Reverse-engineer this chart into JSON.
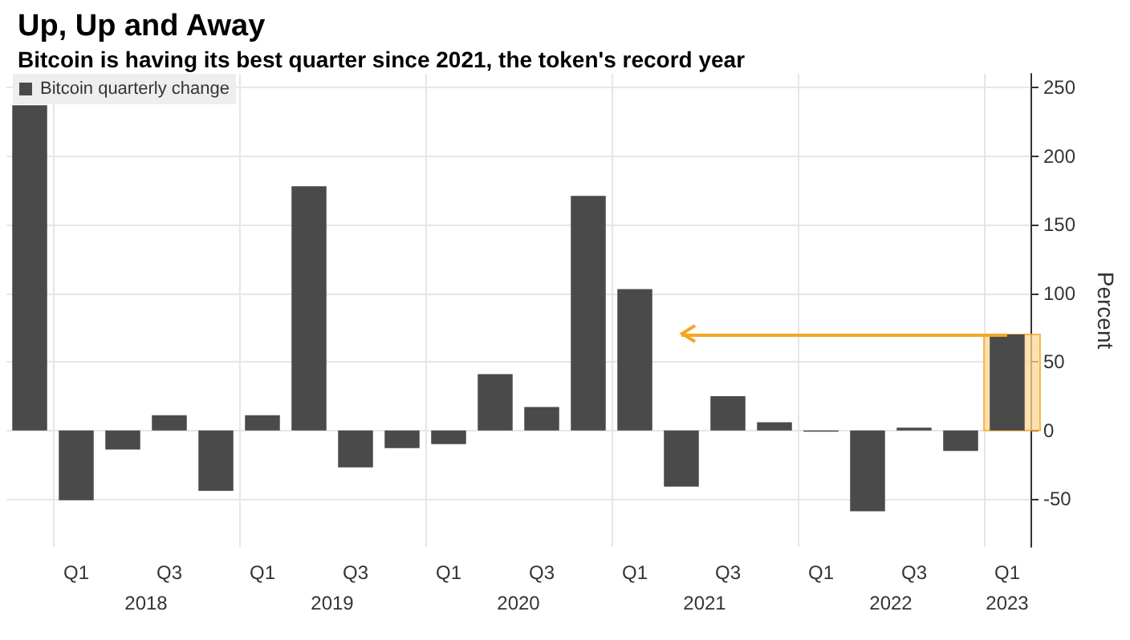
{
  "chart_data": {
    "type": "bar",
    "title": "Up, Up and Away",
    "subtitle": "Bitcoin is having its best quarter since 2021, the token's record year",
    "categories": [
      null,
      "Q1",
      null,
      "Q3",
      null,
      "Q1",
      null,
      "Q3",
      null,
      "Q1",
      null,
      "Q3",
      null,
      "Q1",
      null,
      "Q3",
      null,
      "Q1",
      null,
      "Q3",
      null,
      "Q1"
    ],
    "series": [
      {
        "name": "Bitcoin quarterly change",
        "color": "#4a4a4a",
        "values": [
          237,
          -51,
          -14,
          11,
          -44,
          11,
          178,
          -27,
          -13,
          -10,
          41,
          17,
          171,
          103,
          -41,
          25,
          6,
          -1,
          -59,
          2,
          -15,
          70
        ]
      }
    ],
    "annotations": [
      "2018",
      "2019",
      "2020",
      "2021",
      "2022",
      "2023"
    ],
    "ylabel": "Percent",
    "ylim": [
      -85,
      260
    ],
    "yticks": [
      -50,
      0,
      50,
      100,
      150,
      200,
      250
    ],
    "ref_lines": [
      {
        "axis": "y",
        "value": 70,
        "color": "#f5a623"
      }
    ],
    "bands": [
      {
        "axis": "y",
        "from": 0,
        "to": 70,
        "color": "#fcd592"
      }
    ],
    "grid": true,
    "legend": "top left"
  }
}
